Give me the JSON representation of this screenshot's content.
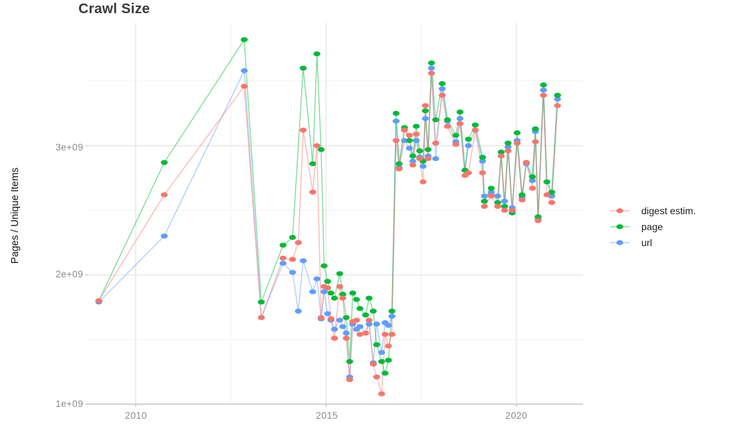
{
  "title": "Crawl Size",
  "axes": {
    "y_label": "Pages / Unique Items",
    "x_ticks": [
      "2010",
      "2015",
      "2020"
    ],
    "y_ticks": [
      "1e+09",
      "2e+09",
      "3e+09"
    ]
  },
  "legend": {
    "items": [
      {
        "label": "digest estim.",
        "color": "#F8766D"
      },
      {
        "label": "page",
        "color": "#00BA38"
      },
      {
        "label": "url",
        "color": "#619CFF"
      }
    ]
  },
  "colors": {
    "digest": "#F8766D",
    "page": "#00BA38",
    "url": "#619CFF",
    "grid_major": "#e3e3e3",
    "grid_minor": "#f1f1f1",
    "axis_line": "#bdbdbd",
    "tick_text": "#8a8a8a"
  },
  "chart_data": {
    "type": "line",
    "title": "Crawl Size",
    "xlabel": "",
    "ylabel": "Pages / Unique Items",
    "y_unit": "items (values in billions, 1e9)",
    "x_unit": "year (decimal)",
    "xlim": [
      2008.75,
      2021.75
    ],
    "ylim_billions": [
      1.0,
      3.95
    ],
    "x_major_ticks": [
      2010,
      2015,
      2020
    ],
    "x_minor_gridlines": [
      2012.5,
      2017.5
    ],
    "y_major_ticks_billions": [
      1,
      2,
      3
    ],
    "y_minor_gridlines_billions": [
      1.5,
      2.5,
      3.5
    ],
    "grid": true,
    "legend_position": "right-center",
    "marker": "ellipse-dot",
    "series": [
      {
        "name": "url",
        "color": "#619CFF",
        "points": [
          [
            2009.03,
            1.79
          ],
          [
            2010.75,
            2.3
          ],
          [
            2012.85,
            3.58
          ],
          [
            2013.3,
            1.67
          ],
          [
            2013.87,
            2.09
          ],
          [
            2014.12,
            2.02
          ],
          [
            2014.27,
            1.72
          ],
          [
            2014.4,
            2.11
          ],
          [
            2014.65,
            1.87
          ],
          [
            2014.76,
            1.97
          ],
          [
            2014.87,
            1.66
          ],
          [
            2014.95,
            1.87
          ],
          [
            2015.04,
            1.7
          ],
          [
            2015.13,
            1.65
          ],
          [
            2015.22,
            1.58
          ],
          [
            2015.36,
            1.65
          ],
          [
            2015.44,
            1.6
          ],
          [
            2015.53,
            1.55
          ],
          [
            2015.62,
            1.21
          ],
          [
            2015.7,
            1.62
          ],
          [
            2015.8,
            1.58
          ],
          [
            2015.89,
            1.6
          ],
          [
            2016.04,
            1.55
          ],
          [
            2016.13,
            1.62
          ],
          [
            2016.24,
            1.32
          ],
          [
            2016.33,
            1.62
          ],
          [
            2016.46,
            1.4
          ],
          [
            2016.55,
            1.63
          ],
          [
            2016.64,
            1.61
          ],
          [
            2016.73,
            1.68
          ],
          [
            2016.84,
            3.19
          ],
          [
            2016.92,
            2.83
          ],
          [
            2017.06,
            3.04
          ],
          [
            2017.19,
            2.98
          ],
          [
            2017.28,
            2.88
          ],
          [
            2017.37,
            3.04
          ],
          [
            2017.46,
            2.91
          ],
          [
            2017.55,
            2.84
          ],
          [
            2017.61,
            3.21
          ],
          [
            2017.68,
            2.92
          ],
          [
            2017.77,
            3.6
          ],
          [
            2017.88,
            2.9
          ],
          [
            2018.05,
            3.44
          ],
          [
            2018.19,
            3.19
          ],
          [
            2018.41,
            3.03
          ],
          [
            2018.52,
            3.21
          ],
          [
            2018.65,
            2.81
          ],
          [
            2018.74,
            3.0
          ],
          [
            2018.92,
            3.12
          ],
          [
            2019.11,
            2.88
          ],
          [
            2019.16,
            2.61
          ],
          [
            2019.34,
            2.64
          ],
          [
            2019.51,
            2.61
          ],
          [
            2019.6,
            2.92
          ],
          [
            2019.69,
            2.57
          ],
          [
            2019.78,
            2.99
          ],
          [
            2019.89,
            2.52
          ],
          [
            2020.02,
            3.04
          ],
          [
            2020.15,
            2.6
          ],
          [
            2020.26,
            2.86
          ],
          [
            2020.42,
            2.73
          ],
          [
            2020.5,
            3.11
          ],
          [
            2020.57,
            2.43
          ],
          [
            2020.71,
            3.43
          ],
          [
            2020.8,
            2.72
          ],
          [
            2020.93,
            2.61
          ],
          [
            2021.08,
            3.36
          ]
        ]
      },
      {
        "name": "page",
        "color": "#00BA38",
        "points": [
          [
            2009.03,
            1.8
          ],
          [
            2010.75,
            2.87
          ],
          [
            2012.85,
            3.82
          ],
          [
            2013.3,
            1.79
          ],
          [
            2013.87,
            2.23
          ],
          [
            2014.12,
            2.29
          ],
          [
            2014.4,
            3.6
          ],
          [
            2014.65,
            2.86
          ],
          [
            2014.76,
            3.71
          ],
          [
            2014.87,
            2.97
          ],
          [
            2014.95,
            2.07
          ],
          [
            2015.04,
            1.95
          ],
          [
            2015.13,
            1.86
          ],
          [
            2015.22,
            1.82
          ],
          [
            2015.36,
            2.01
          ],
          [
            2015.44,
            1.85
          ],
          [
            2015.53,
            1.67
          ],
          [
            2015.62,
            1.33
          ],
          [
            2015.7,
            1.86
          ],
          [
            2015.8,
            1.81
          ],
          [
            2015.89,
            1.74
          ],
          [
            2016.04,
            1.69
          ],
          [
            2016.13,
            1.82
          ],
          [
            2016.24,
            1.72
          ],
          [
            2016.33,
            1.46
          ],
          [
            2016.46,
            1.33
          ],
          [
            2016.55,
            1.24
          ],
          [
            2016.64,
            1.34
          ],
          [
            2016.73,
            1.72
          ],
          [
            2016.84,
            3.25
          ],
          [
            2016.92,
            2.86
          ],
          [
            2017.06,
            3.14
          ],
          [
            2017.19,
            3.04
          ],
          [
            2017.28,
            2.92
          ],
          [
            2017.37,
            3.15
          ],
          [
            2017.46,
            2.96
          ],
          [
            2017.55,
            2.88
          ],
          [
            2017.61,
            3.27
          ],
          [
            2017.68,
            2.97
          ],
          [
            2017.77,
            3.64
          ],
          [
            2017.88,
            3.2
          ],
          [
            2018.05,
            3.48
          ],
          [
            2018.19,
            3.2
          ],
          [
            2018.41,
            3.08
          ],
          [
            2018.52,
            3.26
          ],
          [
            2018.65,
            2.81
          ],
          [
            2018.74,
            3.05
          ],
          [
            2018.92,
            3.16
          ],
          [
            2019.11,
            2.91
          ],
          [
            2019.16,
            2.57
          ],
          [
            2019.34,
            2.67
          ],
          [
            2019.51,
            2.56
          ],
          [
            2019.6,
            2.95
          ],
          [
            2019.69,
            2.53
          ],
          [
            2019.78,
            3.02
          ],
          [
            2019.89,
            2.48
          ],
          [
            2020.02,
            3.1
          ],
          [
            2020.15,
            2.62
          ],
          [
            2020.26,
            2.87
          ],
          [
            2020.42,
            2.76
          ],
          [
            2020.5,
            3.13
          ],
          [
            2020.57,
            2.45
          ],
          [
            2020.71,
            3.47
          ],
          [
            2020.8,
            2.72
          ],
          [
            2020.93,
            2.64
          ],
          [
            2021.08,
            3.39
          ]
        ]
      },
      {
        "name": "digest estim.",
        "color": "#F8766D",
        "points": [
          [
            2009.03,
            1.8
          ],
          [
            2010.75,
            2.62
          ],
          [
            2012.85,
            3.46
          ],
          [
            2013.3,
            1.67
          ],
          [
            2013.87,
            2.13
          ],
          [
            2014.12,
            2.12
          ],
          [
            2014.27,
            2.25
          ],
          [
            2014.4,
            3.12
          ],
          [
            2014.65,
            2.64
          ],
          [
            2014.76,
            3.0
          ],
          [
            2014.87,
            1.67
          ],
          [
            2014.95,
            1.91
          ],
          [
            2015.04,
            1.9
          ],
          [
            2015.13,
            1.66
          ],
          [
            2015.22,
            1.51
          ],
          [
            2015.36,
            1.91
          ],
          [
            2015.44,
            1.82
          ],
          [
            2015.53,
            1.51
          ],
          [
            2015.62,
            1.19
          ],
          [
            2015.7,
            1.64
          ],
          [
            2015.8,
            1.65
          ],
          [
            2015.89,
            1.54
          ],
          [
            2016.04,
            1.55
          ],
          [
            2016.13,
            1.65
          ],
          [
            2016.24,
            1.31
          ],
          [
            2016.33,
            1.21
          ],
          [
            2016.46,
            1.08
          ],
          [
            2016.55,
            1.54
          ],
          [
            2016.64,
            1.45
          ],
          [
            2016.73,
            1.54
          ],
          [
            2016.84,
            3.04
          ],
          [
            2016.92,
            2.82
          ],
          [
            2017.06,
            3.12
          ],
          [
            2017.19,
            3.08
          ],
          [
            2017.28,
            2.85
          ],
          [
            2017.37,
            3.09
          ],
          [
            2017.46,
            2.9
          ],
          [
            2017.55,
            2.72
          ],
          [
            2017.61,
            3.31
          ],
          [
            2017.68,
            2.9
          ],
          [
            2017.77,
            3.56
          ],
          [
            2017.88,
            3.02
          ],
          [
            2018.05,
            3.39
          ],
          [
            2018.19,
            3.15
          ],
          [
            2018.41,
            3.01
          ],
          [
            2018.52,
            3.17
          ],
          [
            2018.65,
            2.77
          ],
          [
            2018.74,
            2.79
          ],
          [
            2018.92,
            3.12
          ],
          [
            2019.11,
            2.79
          ],
          [
            2019.16,
            2.53
          ],
          [
            2019.34,
            2.61
          ],
          [
            2019.51,
            2.53
          ],
          [
            2019.6,
            2.92
          ],
          [
            2019.69,
            2.5
          ],
          [
            2019.78,
            2.96
          ],
          [
            2019.89,
            2.5
          ],
          [
            2020.02,
            3.02
          ],
          [
            2020.15,
            2.58
          ],
          [
            2020.26,
            2.87
          ],
          [
            2020.42,
            2.67
          ],
          [
            2020.5,
            3.03
          ],
          [
            2020.57,
            2.42
          ],
          [
            2020.71,
            3.39
          ],
          [
            2020.8,
            2.62
          ],
          [
            2020.93,
            2.56
          ],
          [
            2021.08,
            3.31
          ]
        ]
      }
    ]
  }
}
